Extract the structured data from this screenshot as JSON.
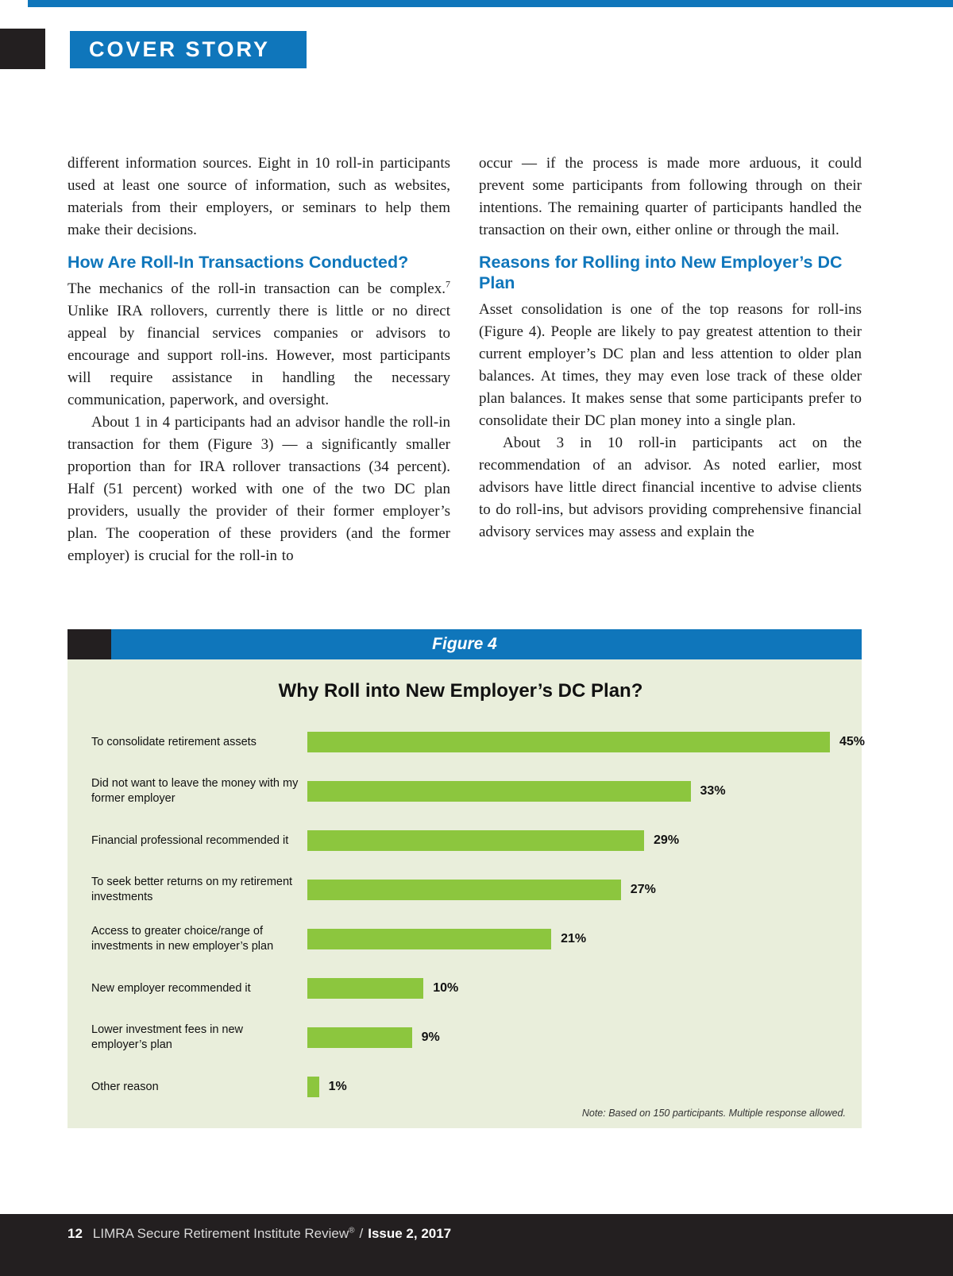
{
  "header": {
    "cover_story_label": "COVER STORY"
  },
  "columns": {
    "left": {
      "p1": "different information sources. Eight in 10 roll-in participants used at least one source of information, such as websites, materials from their employers, or seminars to help them make their decisions.",
      "heading": "How Are Roll-In Transactions Conducted?",
      "p2_pre": "The mechanics of the roll-in transaction can be complex.",
      "p2_sup": "7",
      "p2_post": " Unlike IRA rollovers, currently there is little or no direct appeal by financial services companies or advisors to encourage and support roll-ins. However, most participants will require assistance in handling the necessary communication, paperwork, and oversight.",
      "p3": "About 1 in 4 participants had an advisor handle the roll-in transaction for them (Figure 3) — a significantly smaller proportion than for IRA rollover transactions (34 percent). Half (51 percent) worked with one of the two DC plan providers, usually the provider of their former employer’s plan. The cooperation of these providers (and the former employer) is crucial for the roll-in to"
    },
    "right": {
      "p1": "occur — if the process is made more arduous, it could prevent some participants from following through on their intentions. The remaining quarter of participants handled the transaction on their own, either online or through the mail.",
      "heading": "Reasons for Rolling into New Employer’s DC Plan",
      "p2": "Asset consolidation is one of the top reasons for roll-ins (Figure 4). People are likely to pay greatest attention to their current employer’s DC plan and less attention to older plan balances. At times, they may even lose track of these older plan balances. It makes sense that some participants prefer to consolidate their DC plan money into a single plan.",
      "p3": "About 3 in 10 roll-in participants act on the recommendation of an advisor. As noted earlier, most advisors have little direct financial incentive to advise clients to do roll-ins, but advisors providing comprehensive financial advisory services may assess and explain the"
    }
  },
  "figure": {
    "label": "Figure 4"
  },
  "chart_data": {
    "type": "bar",
    "orientation": "horizontal",
    "title": "Why Roll into New Employer’s DC Plan?",
    "categories": [
      "To consolidate retirement assets",
      "Did not want to leave the money with my former employer",
      "Financial professional recommended it",
      "To seek better returns on my retirement investments",
      "Access to greater choice/range of investments in new employer’s plan",
      "New employer recommended it",
      "Lower investment fees in new employer’s plan",
      "Other reason"
    ],
    "values": [
      45,
      33,
      29,
      27,
      21,
      10,
      9,
      1
    ],
    "value_labels": [
      "45%",
      "33%",
      "29%",
      "27%",
      "21%",
      "10%",
      "9%",
      "1%"
    ],
    "xlim": [
      0,
      45
    ],
    "grid": false,
    "legend": false,
    "bar_color": "#8cc63e",
    "note": "Note: Based on 150 participants. Multiple response allowed."
  },
  "footer": {
    "page_number": "12",
    "journal": "LIMRA Secure Retirement Institute Review",
    "reg": "®",
    "separator": "/",
    "issue": "Issue 2, 2017"
  },
  "colors": {
    "accent_blue": "#0f76bb",
    "bar_green": "#8cc63e",
    "figure_background": "#e9eedb",
    "footer_black": "#231f20"
  }
}
